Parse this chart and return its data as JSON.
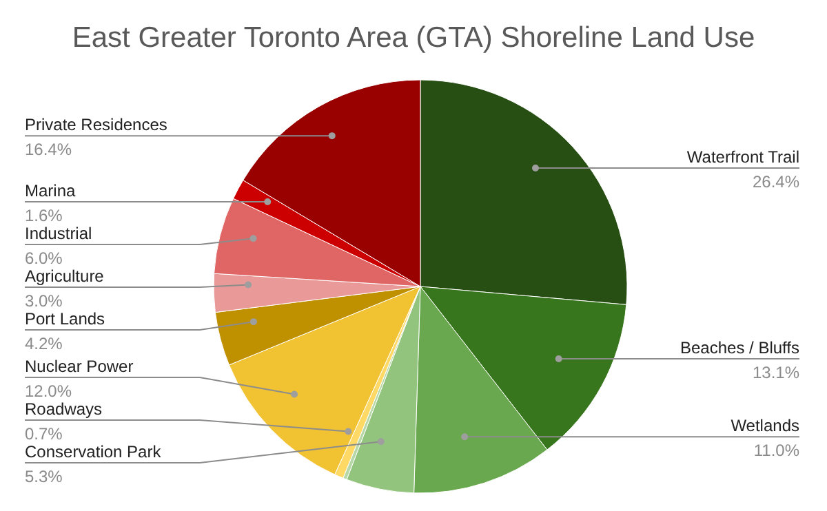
{
  "chart_data": {
    "type": "pie",
    "title": "East Greater Toronto Area (GTA) Shoreline Land Use",
    "categories": [
      "Waterfront Trail",
      "Beaches / Bluffs",
      "Wetlands",
      "Conservation Park",
      null,
      "Roadways",
      "Nuclear Power",
      "Port Lands",
      "Agriculture",
      "Industrial",
      "Marina",
      "Private Residences"
    ],
    "values": [
      26.4,
      13.1,
      11.0,
      5.3,
      0.3,
      0.7,
      12.0,
      4.2,
      3.0,
      6.0,
      1.6,
      16.4
    ],
    "value_labels": [
      "26.4%",
      "13.1%",
      "11.0%",
      "5.3%",
      null,
      "0.7%",
      "12.0%",
      "4.2%",
      "3.0%",
      "6.0%",
      "1.6%",
      "16.4%"
    ],
    "colors": [
      "#274e13",
      "#38761d",
      "#6aa84f",
      "#93c47d",
      "#b6d7a8",
      "#ffd966",
      "#f1c232",
      "#bf9000",
      "#ea9999",
      "#e06666",
      "#cc0000",
      "#990000"
    ]
  }
}
